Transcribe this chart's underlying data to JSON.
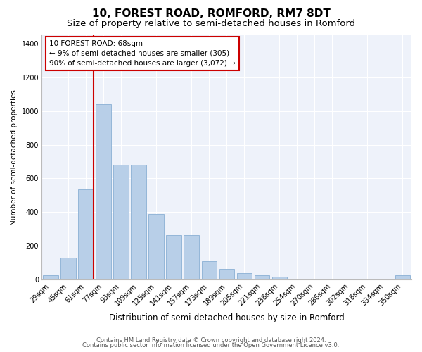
{
  "title": "10, FOREST ROAD, ROMFORD, RM7 8DT",
  "subtitle": "Size of property relative to semi-detached houses in Romford",
  "xlabel": "Distribution of semi-detached houses by size in Romford",
  "ylabel": "Number of semi-detached properties",
  "categories": [
    "29sqm",
    "45sqm",
    "61sqm",
    "77sqm",
    "93sqm",
    "109sqm",
    "125sqm",
    "141sqm",
    "157sqm",
    "173sqm",
    "189sqm",
    "205sqm",
    "221sqm",
    "238sqm",
    "254sqm",
    "270sqm",
    "286sqm",
    "302sqm",
    "318sqm",
    "334sqm",
    "350sqm"
  ],
  "values": [
    25,
    130,
    535,
    1040,
    680,
    680,
    390,
    265,
    265,
    110,
    65,
    40,
    25,
    15,
    0,
    0,
    0,
    0,
    0,
    0,
    25
  ],
  "bar_color": "#b8cfe8",
  "bar_edge_color": "#8aafd4",
  "vline_color": "#cc0000",
  "vline_pos": 2.4375,
  "annotation_text": "10 FOREST ROAD: 68sqm\n← 9% of semi-detached houses are smaller (305)\n90% of semi-detached houses are larger (3,072) →",
  "annotation_box_color": "#cc0000",
  "ylim": [
    0,
    1450
  ],
  "yticks": [
    0,
    200,
    400,
    600,
    800,
    1000,
    1200,
    1400
  ],
  "bg_color": "#eef2fa",
  "grid_color": "#ffffff",
  "footer1": "Contains HM Land Registry data © Crown copyright and database right 2024.",
  "footer2": "Contains public sector information licensed under the Open Government Licence v3.0.",
  "title_fontsize": 11,
  "subtitle_fontsize": 9.5,
  "xlabel_fontsize": 8.5,
  "ylabel_fontsize": 7.5,
  "tick_fontsize": 7,
  "annot_fontsize": 7.5,
  "footer_fontsize": 6
}
